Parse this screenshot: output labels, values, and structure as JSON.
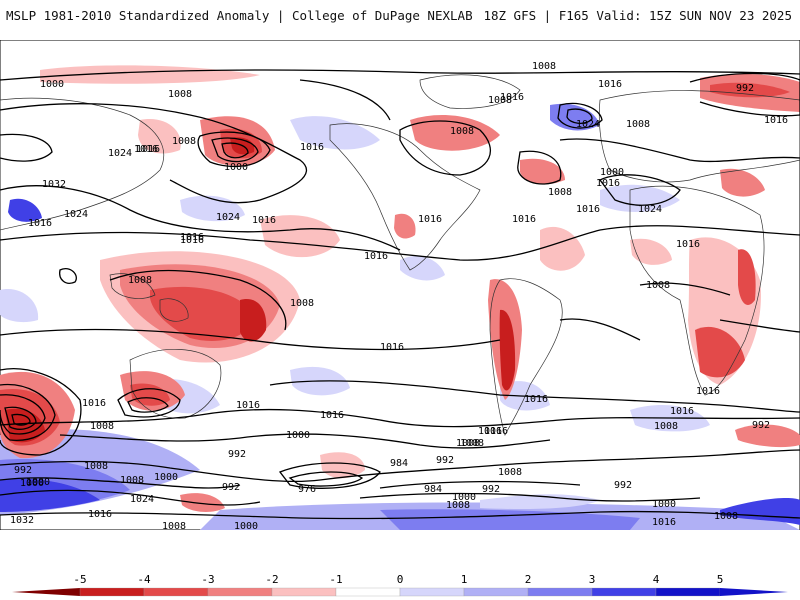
{
  "header": {
    "left_title": "MSLP 1981-2010 Standardized Anomaly | College of DuPage NEXLAB",
    "right_title": "18Z GFS | F165 Valid: 15Z SUN NOV 23 2025"
  },
  "legend": {
    "ticks": [
      "-5",
      "-4",
      "-3",
      "-2",
      "-1",
      "0",
      "1",
      "2",
      "3",
      "4",
      "5"
    ],
    "colors": [
      "#7f0000",
      "#c81e1e",
      "#e34a4a",
      "#f08080",
      "#fbc0c0",
      "#ffffff",
      "#d6d6fb",
      "#b0b0f5",
      "#7d7df0",
      "#4040e6",
      "#1212c8"
    ]
  },
  "contour_labels": [
    "1000",
    "1008",
    "1016",
    "1008",
    "1016",
    "1024",
    "1008",
    "1032",
    "1024",
    "1016",
    "1000",
    "1016",
    "1024",
    "1016",
    "1016",
    "1016",
    "1016",
    "1008",
    "1008",
    "1016",
    "992",
    "1024",
    "1008",
    "1000",
    "1016",
    "1008",
    "1016",
    "1016",
    "1024",
    "1016",
    "1008",
    "1008",
    "1016",
    "1016",
    "1016",
    "1008",
    "1016",
    "1016",
    "1008",
    "1016",
    "1016",
    "1016",
    "1016",
    "1008",
    "1000",
    "992",
    "1008",
    "1016",
    "1008",
    "1000",
    "992",
    "984",
    "992",
    "976",
    "1024",
    "992",
    "1000",
    "1008",
    "1008",
    "992",
    "1000",
    "1016",
    "1008",
    "1032",
    "1008",
    "1000",
    "1016",
    "1008",
    "984",
    "1000",
    "992",
    "1016",
    "992",
    "1000",
    "1008",
    "1016"
  ]
}
